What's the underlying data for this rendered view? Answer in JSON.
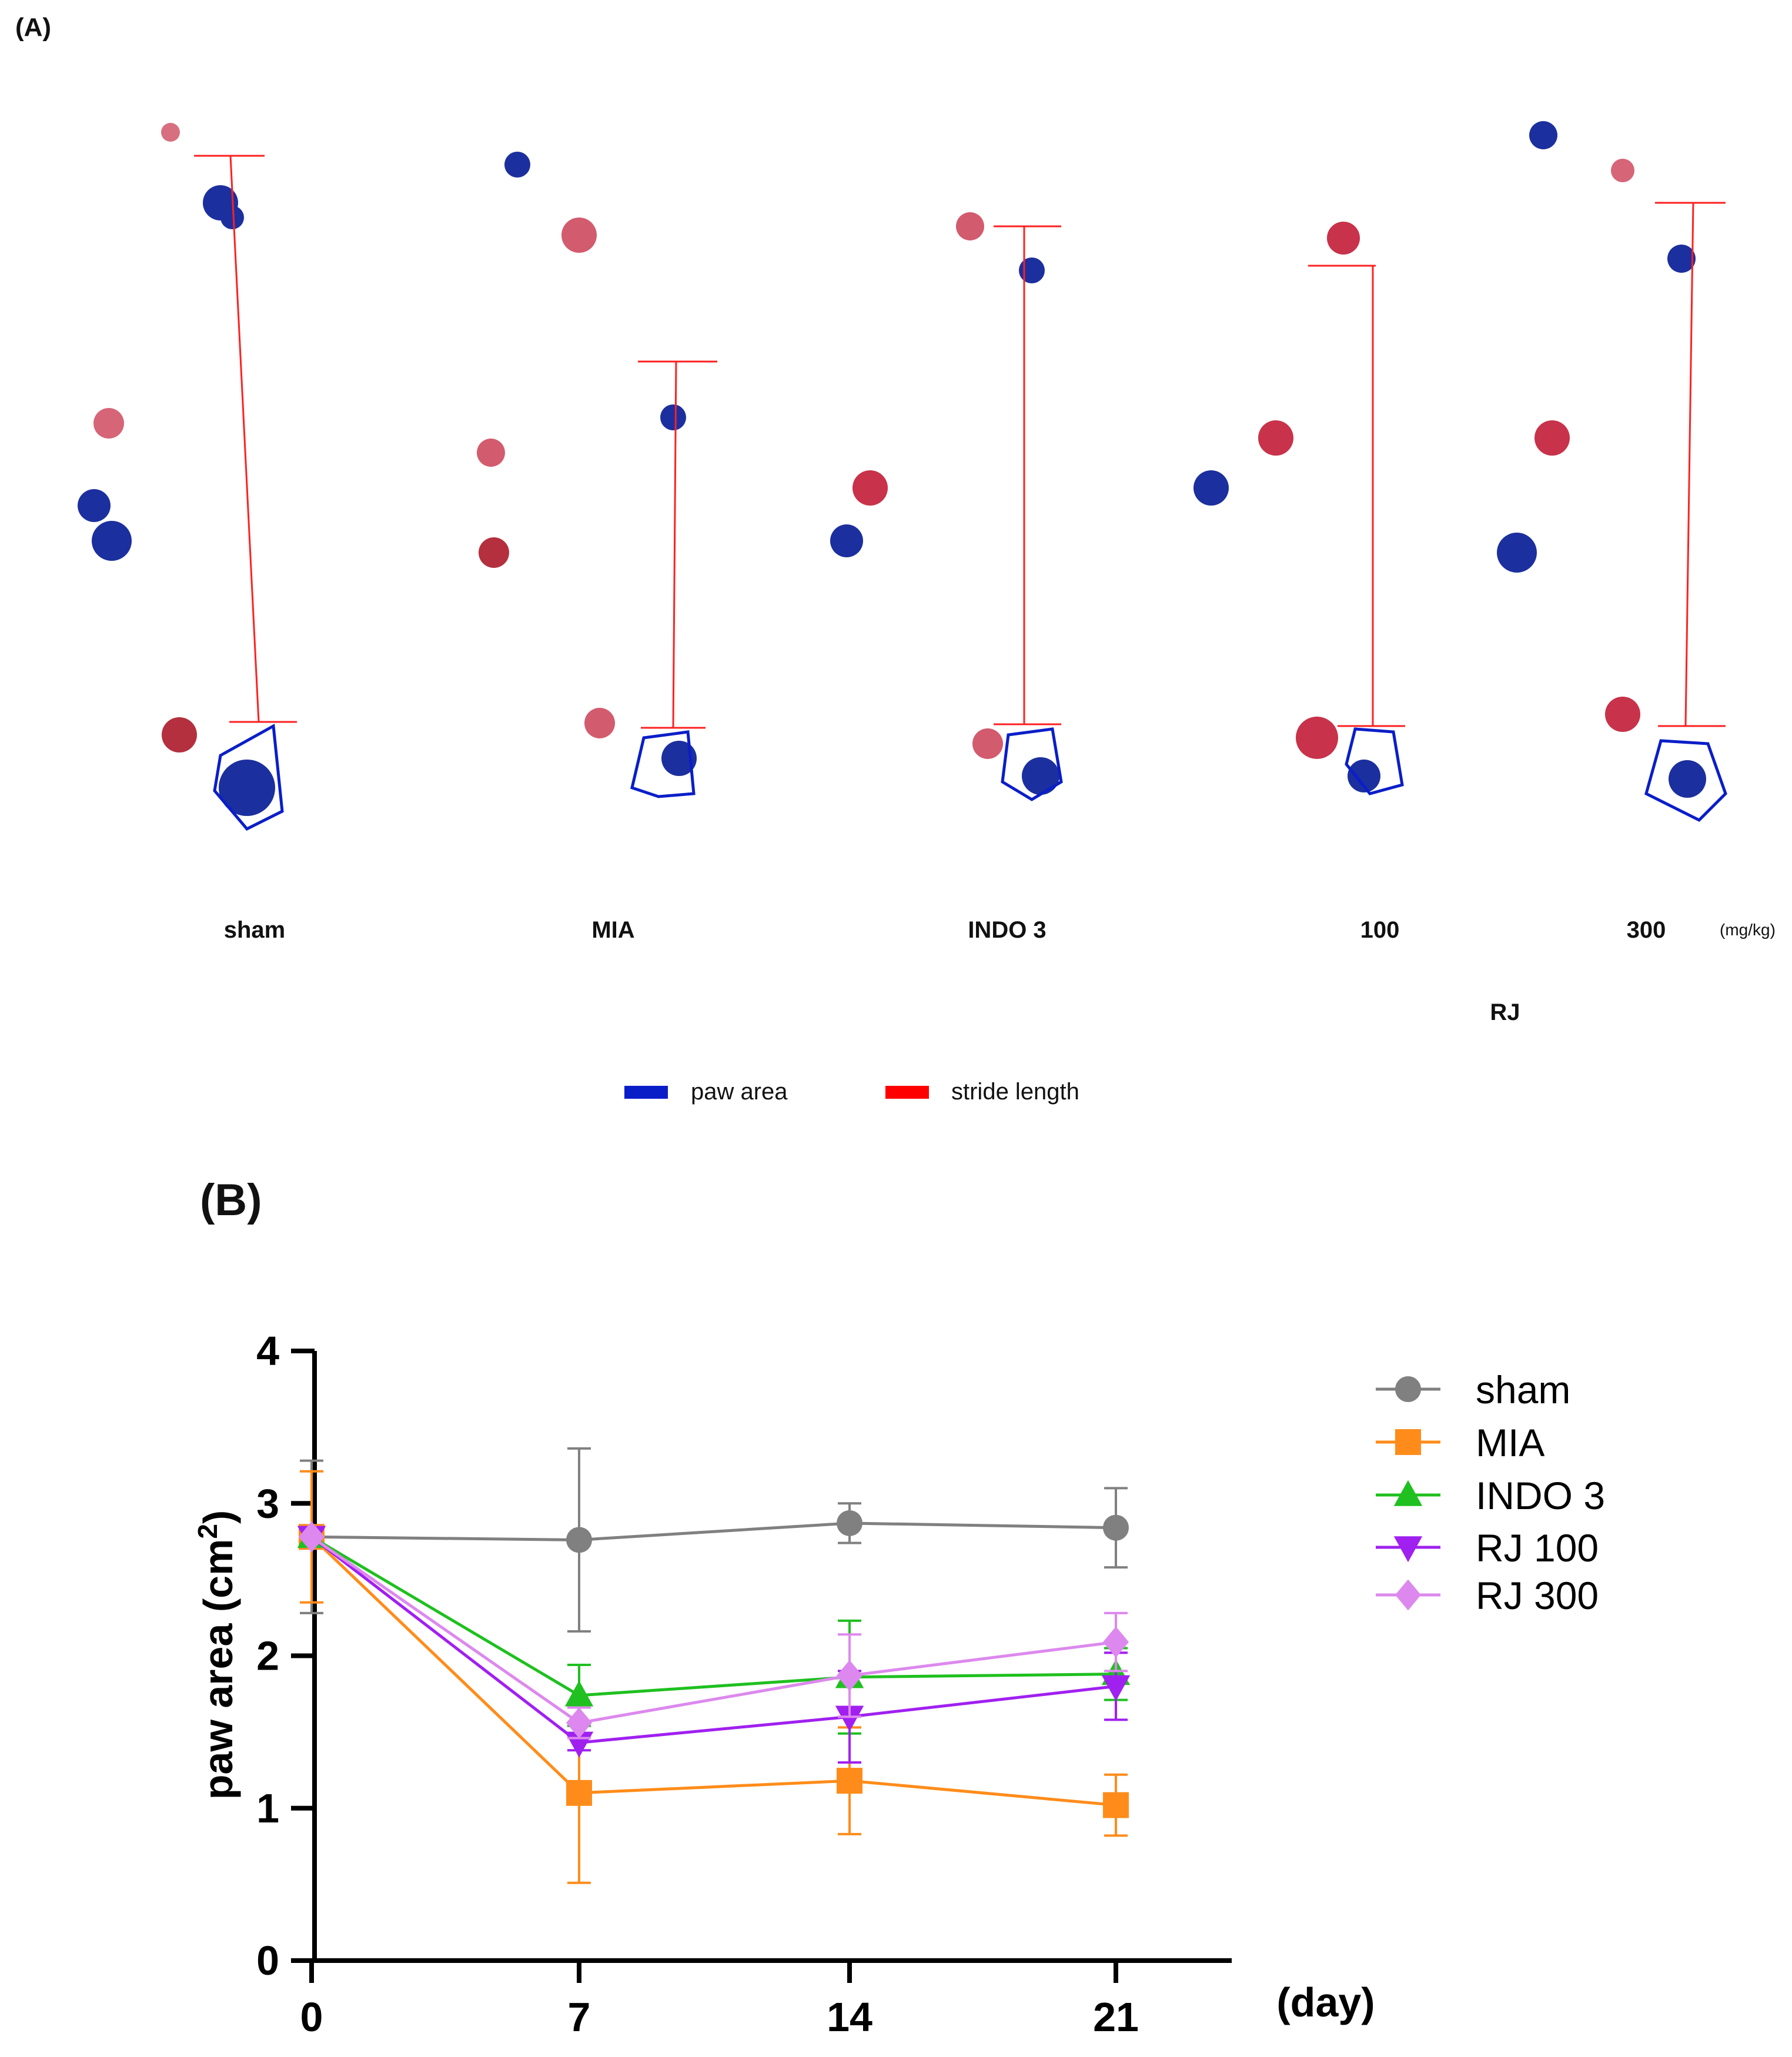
{
  "panel_a": {
    "label": "(A)",
    "groups": [
      "sham",
      "MIA",
      "INDO 3",
      "100",
      "300"
    ],
    "unit": "(mg/kg)",
    "rj_label": "RJ",
    "legend": [
      {
        "label": "paw area",
        "color": "#0a1ec8"
      },
      {
        "label": "stride length",
        "color": "#ff0000"
      }
    ]
  },
  "panel_b": {
    "label": "(B)"
  },
  "chart_data": {
    "type": "line",
    "x": [
      0,
      7,
      14,
      21
    ],
    "x_tick_labels": [
      "0",
      "7",
      "14",
      "21"
    ],
    "xlabel": "(day)",
    "ylabel": "paw area (cm",
    "ylabel_superscript": "2",
    "ylabel_close": ")",
    "ylim": [
      0,
      4
    ],
    "y_ticks": [
      0,
      1,
      2,
      3,
      4
    ],
    "grid": false,
    "legend_position": "top-right",
    "series": [
      {
        "name": "sham",
        "color": "#808080",
        "marker": "circle",
        "values": [
          2.78,
          2.76,
          2.87,
          2.84
        ],
        "errors": [
          0.5,
          0.6,
          0.13,
          0.26
        ]
      },
      {
        "name": "MIA",
        "color": "#ff8c1a",
        "marker": "square",
        "values": [
          2.78,
          1.1,
          1.18,
          1.02
        ],
        "errors": [
          0.43,
          0.59,
          0.35,
          0.2
        ]
      },
      {
        "name": "INDO 3",
        "color": "#1fc01f",
        "marker": "triangle-up",
        "values": [
          2.78,
          1.74,
          1.86,
          1.88
        ],
        "errors": [
          0.0,
          0.2,
          0.37,
          0.17
        ]
      },
      {
        "name": "RJ 100",
        "color": "#a020f0",
        "marker": "triangle-down",
        "values": [
          2.78,
          1.43,
          1.6,
          1.8
        ],
        "errors": [
          0.0,
          0.05,
          0.3,
          0.22
        ]
      },
      {
        "name": "RJ 300",
        "color": "#dd88ee",
        "marker": "diamond",
        "values": [
          2.78,
          1.56,
          1.87,
          2.09
        ],
        "errors": [
          0.0,
          0.1,
          0.27,
          0.19
        ]
      }
    ]
  }
}
